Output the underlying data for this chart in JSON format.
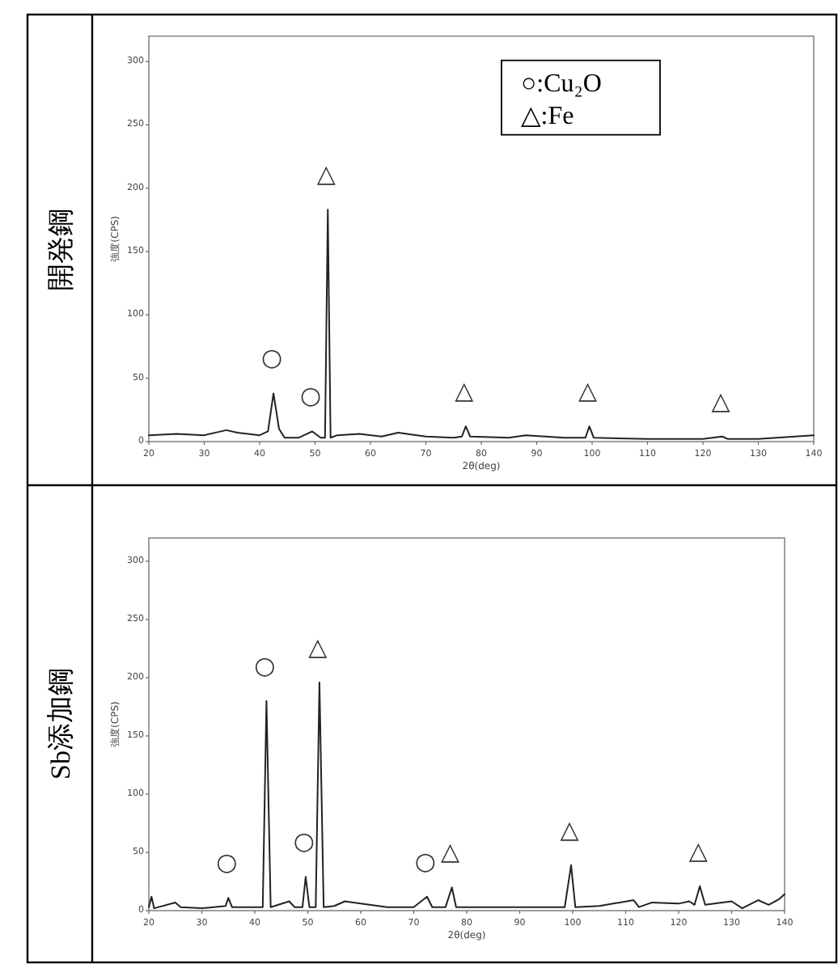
{
  "chart_data": [
    {
      "type": "line",
      "title": "開発鋼",
      "xlabel": "2θ(deg)",
      "ylabel": "強度(CPS)",
      "xlim": [
        20,
        140
      ],
      "ylim": [
        0,
        320
      ],
      "xticks": [
        20,
        30,
        40,
        50,
        60,
        70,
        80,
        90,
        100,
        110,
        120,
        130,
        140
      ],
      "yticks": [
        0,
        50,
        100,
        150,
        200,
        250,
        300
      ],
      "series": [
        {
          "color": "#222222",
          "x": [
            20,
            25,
            30,
            34,
            36,
            40,
            41.5,
            42.5,
            43.5,
            44.5,
            47,
            49.5,
            51,
            51.8,
            52.3,
            52.8,
            54,
            58,
            62,
            65,
            70,
            75,
            76.5,
            77.2,
            78,
            85,
            88,
            95,
            98.8,
            99.5,
            100.3,
            110,
            120,
            123.5,
            124.5,
            130,
            140
          ],
          "values": [
            5,
            6,
            5,
            9,
            7,
            5,
            8,
            38,
            10,
            3,
            3,
            8,
            3,
            3,
            183,
            3,
            5,
            6,
            4,
            7,
            4,
            3,
            4,
            12,
            4,
            3,
            5,
            3,
            3,
            12,
            3,
            2,
            2,
            4,
            2,
            2,
            5
          ]
        }
      ],
      "annotations": [
        "○:Cu₂O",
        "△:Fe",
        {
          "text": "○",
          "x": 42.5,
          "y": 38
        },
        {
          "text": "○",
          "x": 49.5,
          "y": 8
        },
        {
          "text": "△",
          "x": 52.3,
          "y": 183
        },
        {
          "text": "△",
          "x": 77.2,
          "y": 12
        },
        {
          "text": "△",
          "x": 99.5,
          "y": 12
        },
        {
          "text": "△",
          "x": 123.5,
          "y": 4
        }
      ]
    },
    {
      "type": "line",
      "title": "Sb添加鋼",
      "xlabel": "2θ(deg)",
      "ylabel": "強度(CPS)",
      "xlim": [
        20,
        140
      ],
      "ylim": [
        0,
        320
      ],
      "xticks": [
        20,
        30,
        40,
        50,
        60,
        70,
        80,
        90,
        100,
        110,
        120,
        130,
        140
      ],
      "yticks": [
        0,
        50,
        100,
        150,
        200,
        250,
        300
      ],
      "series": [
        {
          "color": "#222222",
          "x": [
            20,
            20.5,
            21,
            25,
            26,
            30,
            34.5,
            35,
            35.7,
            40,
            41.5,
            42.2,
            43,
            46.5,
            47.5,
            49,
            49.6,
            50.3,
            51.5,
            52.2,
            53,
            55,
            57,
            60,
            65,
            70,
            72.5,
            73.5,
            76,
            77.2,
            78,
            85,
            90,
            98.5,
            99.7,
            100.5,
            105,
            111.5,
            112.5,
            115,
            120,
            122,
            123,
            124,
            125,
            130,
            132,
            135,
            137,
            139,
            140
          ],
          "values": [
            3,
            12,
            2,
            7,
            3,
            2,
            4,
            11,
            3,
            3,
            3,
            180,
            3,
            8,
            3,
            3,
            29,
            3,
            3,
            196,
            3,
            4,
            8,
            6,
            3,
            3,
            12,
            3,
            3,
            20,
            3,
            3,
            3,
            3,
            39,
            3,
            4,
            9,
            3,
            7,
            6,
            8,
            5,
            21,
            5,
            8,
            2,
            9,
            5,
            10,
            14
          ]
        }
      ],
      "annotations": [
        {
          "text": "○",
          "x": 35,
          "y": 11
        },
        {
          "text": "○",
          "x": 42.2,
          "y": 180
        },
        {
          "text": "○",
          "x": 49.6,
          "y": 29
        },
        {
          "text": "○",
          "x": 72.5,
          "y": 12
        },
        {
          "text": "△",
          "x": 52.2,
          "y": 196
        },
        {
          "text": "△",
          "x": 77.2,
          "y": 20
        },
        {
          "text": "△",
          "x": 99.7,
          "y": 39
        },
        {
          "text": "△",
          "x": 124,
          "y": 21
        }
      ]
    }
  ]
}
